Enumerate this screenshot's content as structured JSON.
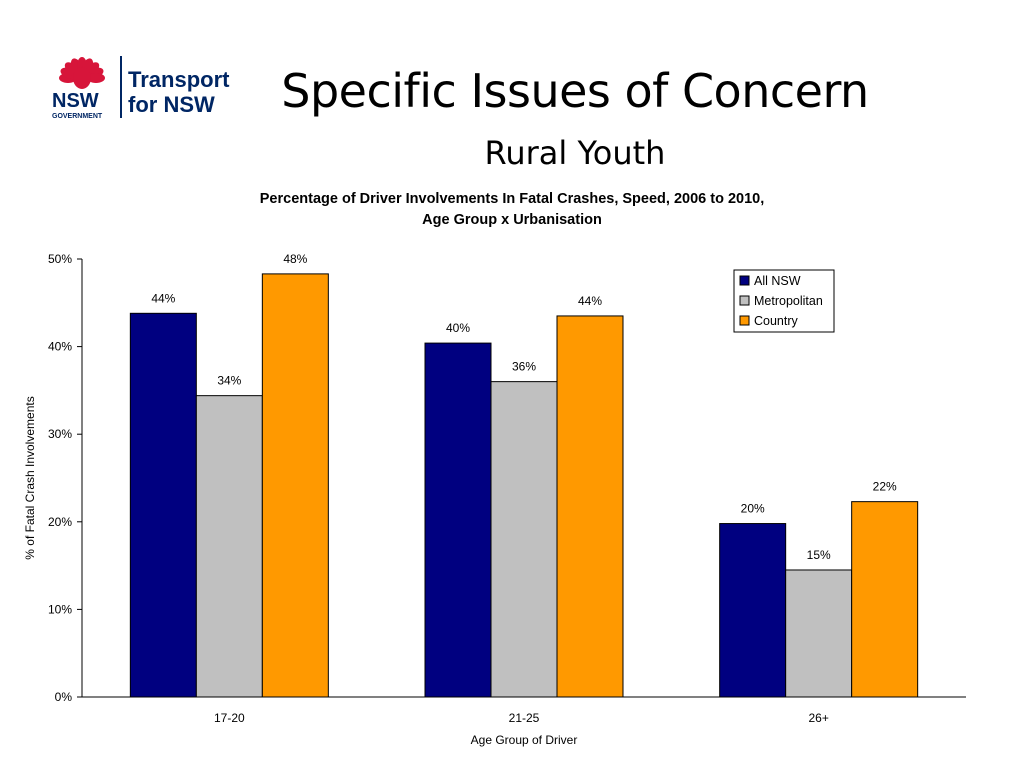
{
  "slide": {
    "title": "Specific Issues of Concern",
    "subtitle": "Rural Youth"
  },
  "logo": {
    "nsw_text": "NSW",
    "government_text": "GOVERNMENT",
    "brand_line1": "Transport",
    "brand_line2": "for NSW",
    "colors": {
      "waratah": "#d7153a",
      "text": "#002664"
    }
  },
  "chart_data": {
    "type": "bar",
    "title_lines": [
      "Percentage of Driver Involvements In Fatal Crashes, Speed, 2006 to 2010,",
      "Age Group x Urbanisation"
    ],
    "xlabel": "Age Group of Driver",
    "ylabel": "% of Fatal Crash Involvements",
    "categories": [
      "17-20",
      "21-25",
      "26+"
    ],
    "ylim": [
      0,
      50
    ],
    "yticks": [
      0,
      10,
      20,
      30,
      40,
      50
    ],
    "ytick_labels": [
      "0%",
      "10%",
      "20%",
      "30%",
      "40%",
      "50%"
    ],
    "grid": false,
    "legend_position": "top-right",
    "series": [
      {
        "name": "All NSW",
        "color": "#000080",
        "values": [
          43.8,
          40.4,
          19.8
        ],
        "labels": [
          "44%",
          "40%",
          "20%"
        ]
      },
      {
        "name": "Metropolitan",
        "color": "#c0c0c0",
        "values": [
          34.4,
          36.0,
          14.5
        ],
        "labels": [
          "34%",
          "36%",
          "15%"
        ]
      },
      {
        "name": "Country",
        "color": "#ff9900",
        "values": [
          48.3,
          43.5,
          22.3
        ],
        "labels": [
          "48%",
          "44%",
          "22%"
        ]
      }
    ]
  }
}
